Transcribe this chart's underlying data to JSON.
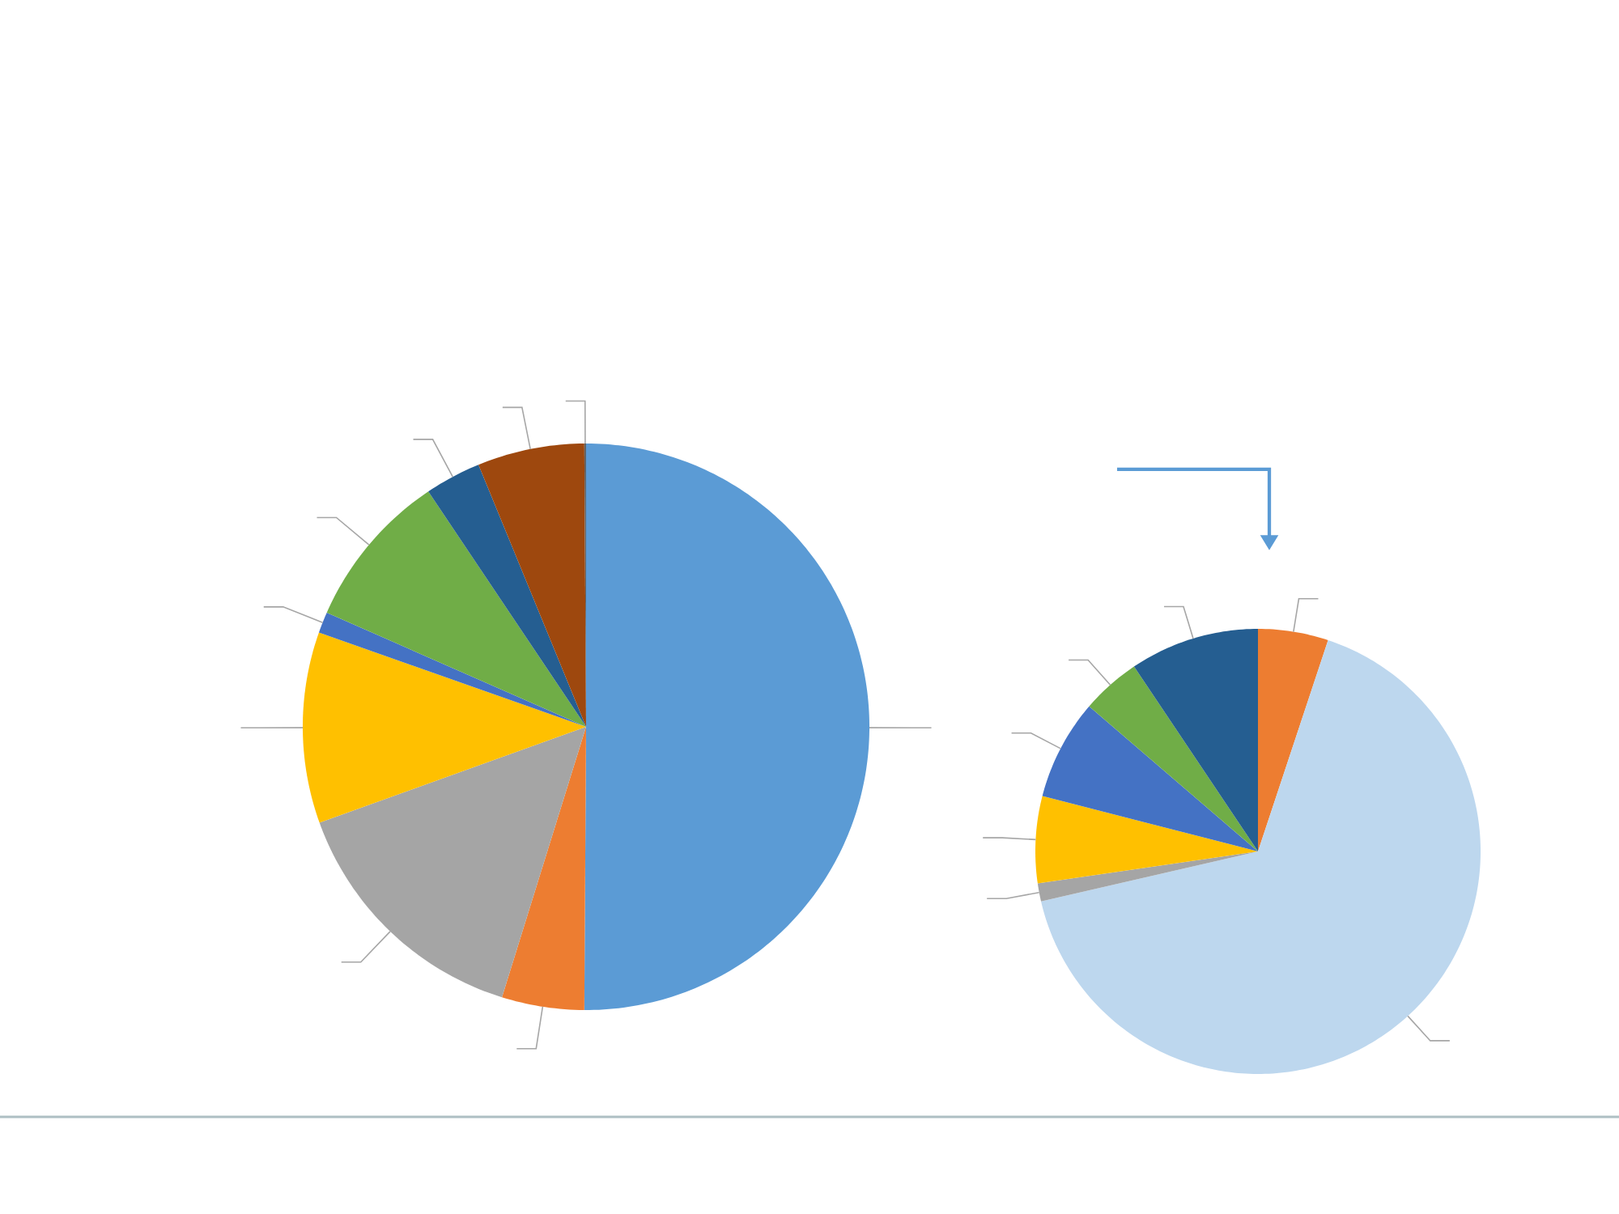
{
  "chart_data": [
    {
      "type": "pie",
      "categories": [
        null,
        null,
        null,
        null,
        null,
        null,
        null,
        null,
        null
      ],
      "values": [
        50.1,
        4.7,
        14.7,
        10.9,
        1.2,
        9.0,
        3.2,
        6.1,
        0.1
      ],
      "colors": [
        "#5b9bd5",
        "#ed7d31",
        "#a5a5a5",
        "#ffc000",
        "#4472c4",
        "#70ad47",
        "#255e91",
        "#9e480e",
        "#636363"
      ]
    },
    {
      "type": "pie",
      "categories": [
        null,
        null,
        null,
        null,
        null,
        null,
        null
      ],
      "values": [
        5.1,
        66.3,
        1.3,
        6.3,
        7.3,
        4.3,
        9.4
      ],
      "colors": [
        "#ed7d31",
        "#bdd7ee",
        "#a5a5a5",
        "#ffc000",
        "#4472c4",
        "#70ad47",
        "#255e91"
      ]
    }
  ]
}
